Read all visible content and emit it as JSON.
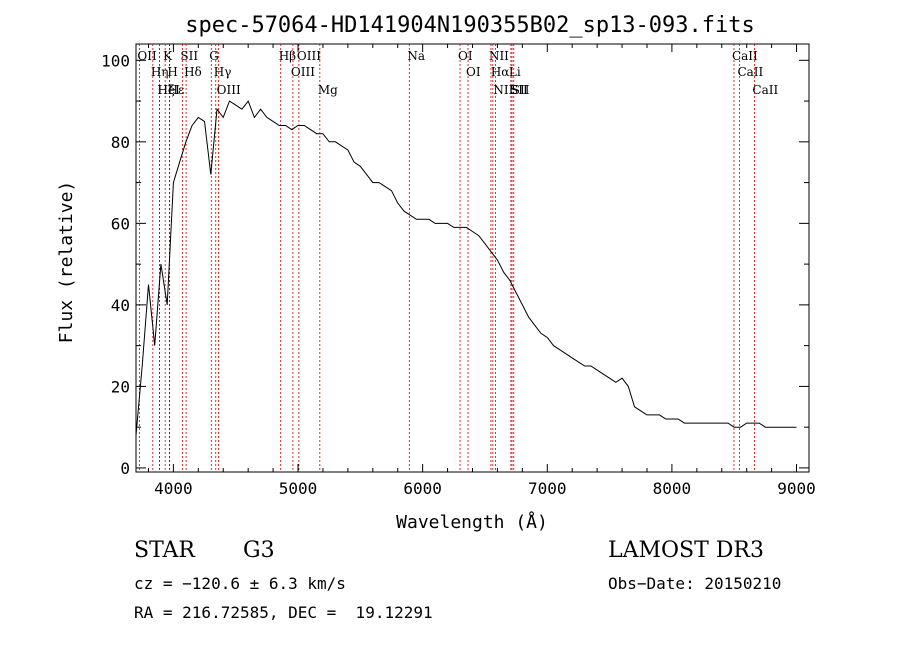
{
  "chart_data": {
    "type": "line",
    "title": "spec-57064-HD141904N190355B02_sp13-093.fits",
    "xlabel": "Wavelength (Å)",
    "ylabel": "Flux (relative)",
    "xlim": [
      3700,
      9100
    ],
    "ylim": [
      -1,
      104
    ],
    "xticks": [
      4000,
      5000,
      6000,
      7000,
      8000,
      9000
    ],
    "yticks": [
      0,
      20,
      40,
      60,
      80,
      100
    ],
    "grid": false,
    "series": [
      {
        "name": "flux",
        "x": [
          3700,
          3750,
          3800,
          3850,
          3900,
          3950,
          4000,
          4050,
          4100,
          4150,
          4200,
          4250,
          4300,
          4350,
          4400,
          4450,
          4500,
          4550,
          4600,
          4650,
          4700,
          4750,
          4800,
          4850,
          4900,
          4950,
          5000,
          5050,
          5100,
          5150,
          5200,
          5250,
          5300,
          5350,
          5400,
          5450,
          5500,
          5550,
          5600,
          5650,
          5700,
          5750,
          5800,
          5850,
          5900,
          5950,
          6000,
          6050,
          6100,
          6150,
          6200,
          6250,
          6300,
          6350,
          6400,
          6450,
          6500,
          6550,
          6600,
          6650,
          6700,
          6750,
          6800,
          6850,
          6900,
          6950,
          7000,
          7050,
          7100,
          7150,
          7200,
          7250,
          7300,
          7350,
          7400,
          7450,
          7500,
          7550,
          7600,
          7650,
          7700,
          7750,
          7800,
          7850,
          7900,
          7950,
          8000,
          8050,
          8100,
          8150,
          8200,
          8250,
          8300,
          8350,
          8400,
          8450,
          8500,
          8550,
          8600,
          8650,
          8700,
          8750,
          8800,
          8850,
          8900,
          8950,
          9000
        ],
        "y": [
          8,
          25,
          45,
          30,
          50,
          40,
          70,
          75,
          80,
          84,
          86,
          85,
          72,
          88,
          86,
          90,
          89,
          88,
          90,
          86,
          88,
          86,
          85,
          84,
          84,
          83,
          84,
          84,
          83,
          82,
          82,
          80,
          80,
          79,
          78,
          75,
          74,
          72,
          70,
          70,
          69,
          68,
          65,
          63,
          62,
          61,
          61,
          61,
          60,
          60,
          60,
          59,
          59,
          59,
          58,
          57,
          55,
          53,
          51,
          48,
          46,
          43,
          40,
          37,
          35,
          33,
          32,
          30,
          29,
          28,
          27,
          26,
          25,
          25,
          24,
          23,
          22,
          21,
          22,
          20,
          15,
          14,
          13,
          13,
          13,
          12,
          12,
          12,
          11,
          11,
          11,
          11,
          11,
          11,
          11,
          11,
          10,
          10,
          11,
          11,
          11,
          10,
          10,
          10,
          10,
          10,
          10
        ]
      }
    ],
    "lines": [
      {
        "label": "Hα",
        "wavelength": 6563
      },
      {
        "label": "Hβ",
        "wavelength": 4861
      },
      {
        "label": "Hγ",
        "wavelength": 4340
      },
      {
        "label": "Hδ",
        "wavelength": 4102
      },
      {
        "label": "Hε",
        "wavelength": 3970
      },
      {
        "label": "Hη",
        "wavelength": 3835
      },
      {
        "label": "Hζ",
        "wavelength": 3889
      },
      {
        "label": "K",
        "wavelength": 3934
      },
      {
        "label": "H",
        "wavelength": 3968
      },
      {
        "label": "G",
        "wavelength": 4304
      },
      {
        "label": "Mg",
        "wavelength": 5175
      },
      {
        "label": "Na",
        "wavelength": 5893
      },
      {
        "label": "OII",
        "wavelength": 3727
      },
      {
        "label": "HeI",
        "wavelength": 3889
      },
      {
        "label": "SII",
        "wavelength": 4072
      },
      {
        "label": "OIII",
        "wavelength": 4363
      },
      {
        "label": "OIII",
        "wavelength": 4959
      },
      {
        "label": "OIII",
        "wavelength": 5007
      },
      {
        "label": "OI",
        "wavelength": 6300
      },
      {
        "label": "OI",
        "wavelength": 6364
      },
      {
        "label": "NII",
        "wavelength": 6548
      },
      {
        "label": "NII",
        "wavelength": 6584
      },
      {
        "label": "SII",
        "wavelength": 6717
      },
      {
        "label": "SII",
        "wavelength": 6731
      },
      {
        "label": "Li",
        "wavelength": 6708
      },
      {
        "label": "CaII",
        "wavelength": 8498
      },
      {
        "label": "CaII",
        "wavelength": 8542
      },
      {
        "label": "CaII",
        "wavelength": 8662
      }
    ]
  },
  "info": {
    "object_class": "STAR",
    "subclass": "G3",
    "survey": "LAMOST DR3",
    "cz": "cz = −120.6 ± 6.3 km/s",
    "obs_date": "Obs−Date: 20150210",
    "coords": "RA = 216.72585, DEC =  19.12291"
  },
  "colors": {
    "spectrum": "#000000",
    "lines": "#cc0000",
    "axes": "#000000"
  }
}
